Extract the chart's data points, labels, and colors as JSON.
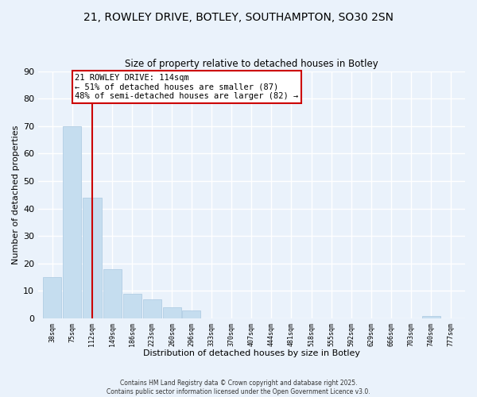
{
  "title_line1": "21, ROWLEY DRIVE, BOTLEY, SOUTHAMPTON, SO30 2SN",
  "title_line2": "Size of property relative to detached houses in Botley",
  "xlabel": "Distribution of detached houses by size in Botley",
  "ylabel": "Number of detached properties",
  "bar_color": "#c5ddef",
  "bar_edge_color": "#aac8e0",
  "vline_x": 112,
  "vline_color": "#cc0000",
  "annotation_title": "21 ROWLEY DRIVE: 114sqm",
  "annotation_line1": "← 51% of detached houses are smaller (87)",
  "annotation_line2": "48% of semi-detached houses are larger (82) →",
  "annotation_box_color": "white",
  "annotation_box_edge": "#cc0000",
  "categories": [
    "38sqm",
    "75sqm",
    "112sqm",
    "149sqm",
    "186sqm",
    "223sqm",
    "260sqm",
    "296sqm",
    "333sqm",
    "370sqm",
    "407sqm",
    "444sqm",
    "481sqm",
    "518sqm",
    "555sqm",
    "592sqm",
    "629sqm",
    "666sqm",
    "703sqm",
    "740sqm",
    "777sqm"
  ],
  "bin_edges": [
    38,
    75,
    112,
    149,
    186,
    223,
    260,
    296,
    333,
    370,
    407,
    444,
    481,
    518,
    555,
    592,
    629,
    666,
    703,
    740,
    777
  ],
  "values": [
    15,
    70,
    44,
    18,
    9,
    7,
    4,
    3,
    0,
    0,
    0,
    0,
    0,
    0,
    0,
    0,
    0,
    0,
    0,
    1,
    0
  ],
  "ylim": [
    0,
    90
  ],
  "yticks": [
    0,
    10,
    20,
    30,
    40,
    50,
    60,
    70,
    80,
    90
  ],
  "background_color": "#eaf2fb",
  "grid_color": "#ffffff",
  "footer_line1": "Contains HM Land Registry data © Crown copyright and database right 2025.",
  "footer_line2": "Contains public sector information licensed under the Open Government Licence v3.0."
}
